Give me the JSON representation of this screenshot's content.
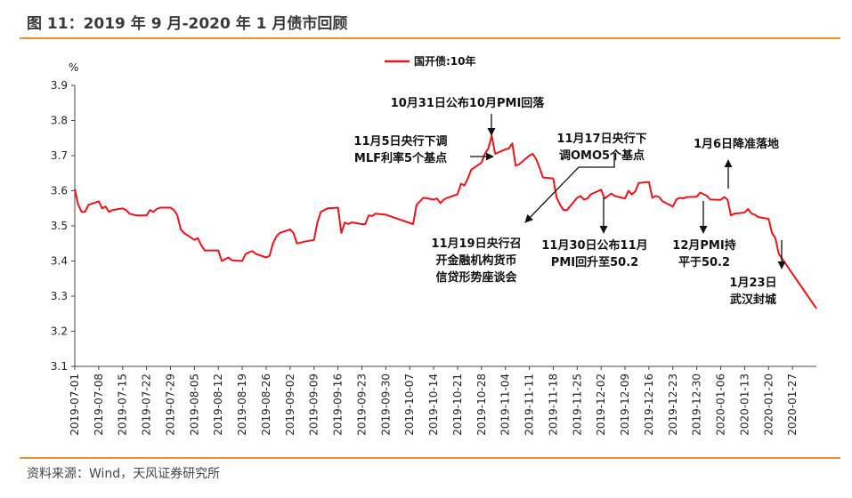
{
  "figure": {
    "title": "图 11：2019 年 9 月-2020 年 1 月债市回顾",
    "source": "资料来源：Wind，天风证券研究所"
  },
  "chart_data": {
    "type": "line",
    "ylabel": "%",
    "ylim": [
      3.1,
      3.9
    ],
    "yticks": [
      "3.1",
      "3.2",
      "3.3",
      "3.4",
      "3.5",
      "3.6",
      "3.7",
      "3.8",
      "3.9"
    ],
    "x_ticks": [
      "2019-07-01",
      "2019-07-08",
      "2019-07-15",
      "2019-07-22",
      "2019-07-29",
      "2019-08-05",
      "2019-08-12",
      "2019-08-19",
      "2019-08-26",
      "2019-09-02",
      "2019-09-09",
      "2019-09-16",
      "2019-09-23",
      "2019-09-30",
      "2019-10-07",
      "2019-10-14",
      "2019-10-21",
      "2019-10-28",
      "2019-11-04",
      "2019-11-11",
      "2019-11-18",
      "2019-11-25",
      "2019-12-02",
      "2019-12-09",
      "2019-12-16",
      "2019-12-23",
      "2019-12-30",
      "2020-01-06",
      "2020-01-13",
      "2020-01-20",
      "2020-01-27"
    ],
    "legend_position": "top-center",
    "grid": false,
    "series": [
      {
        "name": "国开债:10年",
        "color": "#e8141b",
        "points": [
          [
            "2019-07-01",
            3.605
          ],
          [
            "2019-07-02",
            3.56
          ],
          [
            "2019-07-03",
            3.54
          ],
          [
            "2019-07-04",
            3.54
          ],
          [
            "2019-07-05",
            3.56
          ],
          [
            "2019-07-08",
            3.57
          ],
          [
            "2019-07-09",
            3.55
          ],
          [
            "2019-07-10",
            3.555
          ],
          [
            "2019-07-11",
            3.54
          ],
          [
            "2019-07-12",
            3.545
          ],
          [
            "2019-07-15",
            3.55
          ],
          [
            "2019-07-16",
            3.545
          ],
          [
            "2019-07-17",
            3.535
          ],
          [
            "2019-07-18",
            3.532
          ],
          [
            "2019-07-19",
            3.53
          ],
          [
            "2019-07-22",
            3.53
          ],
          [
            "2019-07-23",
            3.545
          ],
          [
            "2019-07-24",
            3.54
          ],
          [
            "2019-07-25",
            3.548
          ],
          [
            "2019-07-26",
            3.552
          ],
          [
            "2019-07-29",
            3.552
          ],
          [
            "2019-07-30",
            3.545
          ],
          [
            "2019-07-31",
            3.53
          ],
          [
            "2019-08-01",
            3.49
          ],
          [
            "2019-08-02",
            3.48
          ],
          [
            "2019-08-05",
            3.46
          ],
          [
            "2019-08-06",
            3.465
          ],
          [
            "2019-08-07",
            3.445
          ],
          [
            "2019-08-08",
            3.43
          ],
          [
            "2019-08-09",
            3.43
          ],
          [
            "2019-08-12",
            3.43
          ],
          [
            "2019-08-13",
            3.4
          ],
          [
            "2019-08-14",
            3.405
          ],
          [
            "2019-08-15",
            3.41
          ],
          [
            "2019-08-16",
            3.402
          ],
          [
            "2019-08-19",
            3.4
          ],
          [
            "2019-08-20",
            3.42
          ],
          [
            "2019-08-21",
            3.425
          ],
          [
            "2019-08-22",
            3.428
          ],
          [
            "2019-08-23",
            3.42
          ],
          [
            "2019-08-26",
            3.41
          ],
          [
            "2019-08-27",
            3.415
          ],
          [
            "2019-08-28",
            3.45
          ],
          [
            "2019-08-29",
            3.47
          ],
          [
            "2019-08-30",
            3.48
          ],
          [
            "2019-09-02",
            3.49
          ],
          [
            "2019-09-03",
            3.48
          ],
          [
            "2019-09-04",
            3.45
          ],
          [
            "2019-09-05",
            3.452
          ],
          [
            "2019-09-06",
            3.455
          ],
          [
            "2019-09-09",
            3.46
          ],
          [
            "2019-09-10",
            3.51
          ],
          [
            "2019-09-11",
            3.54
          ],
          [
            "2019-09-12",
            3.545
          ],
          [
            "2019-09-13",
            3.55
          ],
          [
            "2019-09-16",
            3.552
          ],
          [
            "2019-09-17",
            3.48
          ],
          [
            "2019-09-18",
            3.51
          ],
          [
            "2019-09-19",
            3.505
          ],
          [
            "2019-09-20",
            3.51
          ],
          [
            "2019-09-23",
            3.505
          ],
          [
            "2019-09-24",
            3.505
          ],
          [
            "2019-09-25",
            3.53
          ],
          [
            "2019-09-26",
            3.528
          ],
          [
            "2019-09-27",
            3.535
          ],
          [
            "2019-09-30",
            3.532
          ],
          [
            "2019-10-08",
            3.505
          ],
          [
            "2019-10-09",
            3.56
          ],
          [
            "2019-10-10",
            3.57
          ],
          [
            "2019-10-11",
            3.58
          ],
          [
            "2019-10-14",
            3.575
          ],
          [
            "2019-10-15",
            3.578
          ],
          [
            "2019-10-16",
            3.565
          ],
          [
            "2019-10-17",
            3.575
          ],
          [
            "2019-10-18",
            3.58
          ],
          [
            "2019-10-21",
            3.59
          ],
          [
            "2019-10-22",
            3.62
          ],
          [
            "2019-10-23",
            3.615
          ],
          [
            "2019-10-24",
            3.635
          ],
          [
            "2019-10-25",
            3.66
          ],
          [
            "2019-10-28",
            3.68
          ],
          [
            "2019-10-29",
            3.705
          ],
          [
            "2019-10-30",
            3.72
          ],
          [
            "2019-10-31",
            3.757
          ],
          [
            "2019-11-01",
            3.705
          ],
          [
            "2019-11-04",
            3.718
          ],
          [
            "2019-11-05",
            3.72
          ],
          [
            "2019-11-06",
            3.735
          ],
          [
            "2019-11-07",
            3.672
          ],
          [
            "2019-11-08",
            3.675
          ],
          [
            "2019-11-11",
            3.7
          ],
          [
            "2019-11-12",
            3.705
          ],
          [
            "2019-11-13",
            3.69
          ],
          [
            "2019-11-14",
            3.665
          ],
          [
            "2019-11-15",
            3.638
          ],
          [
            "2019-11-18",
            3.635
          ],
          [
            "2019-11-19",
            3.58
          ],
          [
            "2019-11-20",
            3.56
          ],
          [
            "2019-11-21",
            3.545
          ],
          [
            "2019-11-22",
            3.545
          ],
          [
            "2019-11-25",
            3.58
          ],
          [
            "2019-11-26",
            3.585
          ],
          [
            "2019-11-27",
            3.575
          ],
          [
            "2019-11-28",
            3.578
          ],
          [
            "2019-11-29",
            3.59
          ],
          [
            "2019-12-02",
            3.603
          ],
          [
            "2019-12-03",
            3.578
          ],
          [
            "2019-12-04",
            3.585
          ],
          [
            "2019-12-05",
            3.592
          ],
          [
            "2019-12-06",
            3.585
          ],
          [
            "2019-12-09",
            3.578
          ],
          [
            "2019-12-10",
            3.6
          ],
          [
            "2019-12-11",
            3.59
          ],
          [
            "2019-12-12",
            3.598
          ],
          [
            "2019-12-13",
            3.622
          ],
          [
            "2019-12-16",
            3.625
          ],
          [
            "2019-12-17",
            3.58
          ],
          [
            "2019-12-18",
            3.585
          ],
          [
            "2019-12-19",
            3.582
          ],
          [
            "2019-12-20",
            3.57
          ],
          [
            "2019-12-23",
            3.555
          ],
          [
            "2019-12-24",
            3.575
          ],
          [
            "2019-12-25",
            3.58
          ],
          [
            "2019-12-26",
            3.578
          ],
          [
            "2019-12-27",
            3.582
          ],
          [
            "2019-12-30",
            3.583
          ],
          [
            "2019-12-31",
            3.595
          ],
          [
            "2020-01-02",
            3.585
          ],
          [
            "2020-01-03",
            3.575
          ],
          [
            "2020-01-06",
            3.574
          ],
          [
            "2020-01-07",
            3.582
          ],
          [
            "2020-01-08",
            3.575
          ],
          [
            "2020-01-09",
            3.53
          ],
          [
            "2020-01-10",
            3.535
          ],
          [
            "2020-01-13",
            3.538
          ],
          [
            "2020-01-14",
            3.548
          ],
          [
            "2020-01-15",
            3.535
          ],
          [
            "2020-01-16",
            3.532
          ],
          [
            "2020-01-17",
            3.525
          ],
          [
            "2020-01-20",
            3.52
          ],
          [
            "2020-01-21",
            3.48
          ],
          [
            "2020-01-22",
            3.465
          ],
          [
            "2020-01-23",
            3.42
          ],
          [
            "2020-02-03",
            3.265
          ]
        ]
      }
    ],
    "annotations": [
      {
        "lines": [
          "10月31日公布10月PMI回落"
        ]
      },
      {
        "lines": [
          "11月5日央行下调",
          "MLF利率5个基点"
        ]
      },
      {
        "lines": [
          "11月17日央行下",
          "调OMO5个基点"
        ]
      },
      {
        "lines": [
          "1月6日降准落地"
        ]
      },
      {
        "lines": [
          "11月19日央行召",
          "开金融机构货币",
          "信贷形势座谈会"
        ]
      },
      {
        "lines": [
          "11月30日公布11月",
          "PMI回升至50.2"
        ]
      },
      {
        "lines": [
          "12月PMI持",
          "平于50.2"
        ]
      },
      {
        "lines": [
          "1月23日",
          "武汉封城"
        ]
      }
    ]
  }
}
